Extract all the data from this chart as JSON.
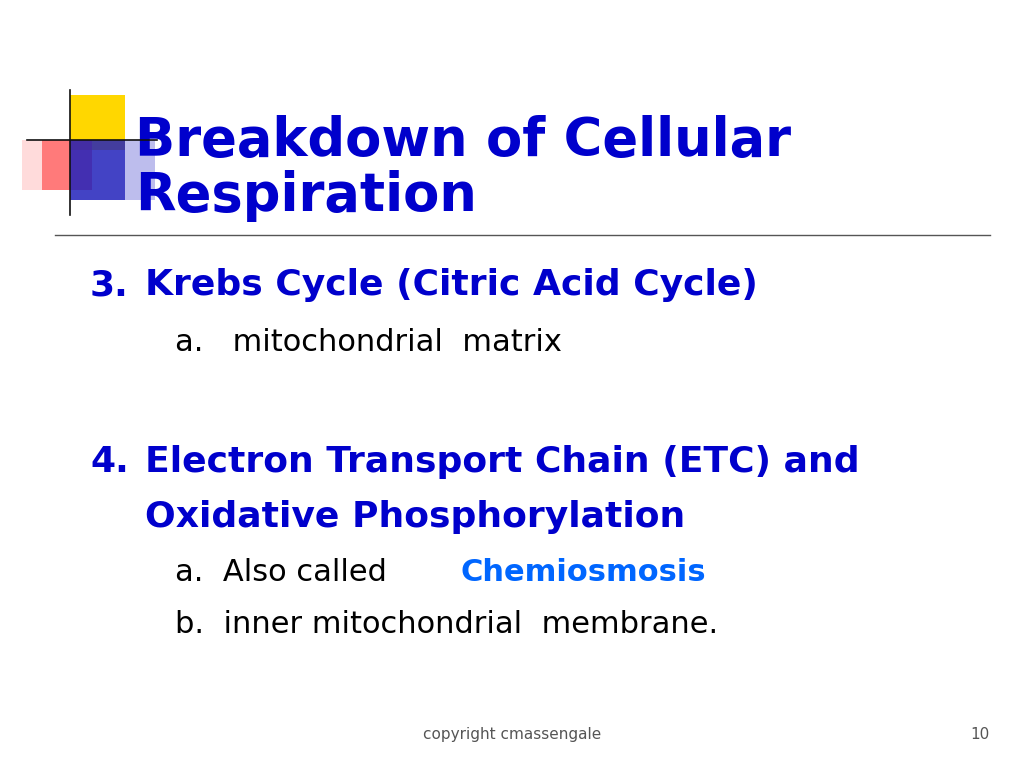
{
  "title_line1": "Breakdown of Cellular",
  "title_line2": "Respiration",
  "title_color": "#0000CC",
  "title_fontsize": 38,
  "separator_color": "#555555",
  "item3_label": "3.",
  "item3_text": "Krebs Cycle (Citric Acid Cycle)",
  "item3_color": "#0000CC",
  "item3_fontsize": 26,
  "item3a_text": "a.   mitochondrial  matrix",
  "item3a_color": "#000000",
  "item3a_fontsize": 22,
  "item4_label": "4.",
  "item4_text_line1": "Electron Transport Chain (ETC) and",
  "item4_text_line2": "Oxidative Phosphorylation",
  "item4_color": "#0000CC",
  "item4_fontsize": 26,
  "item4a_prefix": "a.  Also called ",
  "item4a_highlight": "Chemiosmosis",
  "item4a_highlight_color": "#0066FF",
  "item4a_color": "#000000",
  "item4a_fontsize": 22,
  "item4b_text": "b.  inner mitochondrial  membrane.",
  "item4b_color": "#000000",
  "item4b_fontsize": 22,
  "footer_text": "copyright cmassengale",
  "footer_number": "10",
  "footer_color": "#555555",
  "footer_fontsize": 11,
  "bg_color": "#FFFFFF"
}
